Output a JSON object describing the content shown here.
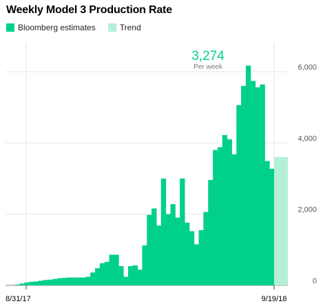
{
  "chart_data": {
    "type": "bar",
    "title": "Weekly Model 3 Production Rate",
    "legend": [
      {
        "label": "Bloomberg estimates",
        "color": "#00d08c"
      },
      {
        "label": "Trend",
        "color": "#b4f0d8"
      }
    ],
    "y_ticks": [
      "6,000",
      "4,000",
      "2,000",
      "0"
    ],
    "y_tick_values": [
      6000,
      4000,
      2000,
      0
    ],
    "ylim": [
      0,
      6200
    ],
    "x_labels": {
      "start": "8/31/17",
      "end": "9/19/18"
    },
    "annotation": {
      "value": "3,274",
      "sub": "Per week"
    },
    "series": [
      {
        "name": "Bloomberg estimates",
        "color": "#00d08c",
        "values": [
          0,
          0,
          20,
          50,
          80,
          100,
          110,
          130,
          150,
          160,
          180,
          200,
          210,
          220,
          220,
          220,
          220,
          240,
          360,
          480,
          620,
          660,
          860,
          860,
          540,
          240,
          540,
          560,
          440,
          1120,
          1980,
          2160,
          1680,
          3000,
          2000,
          2280,
          1900,
          3000,
          1760,
          1520,
          1150,
          1550,
          2060,
          2960,
          3800,
          3880,
          4220,
          4100,
          3680,
          5060,
          5600,
          6170,
          5740,
          5560,
          5640,
          3490,
          3274
        ]
      },
      {
        "name": "Trend",
        "color": "#b4f0d8",
        "values": [
          3600,
          3600
        ]
      }
    ]
  }
}
